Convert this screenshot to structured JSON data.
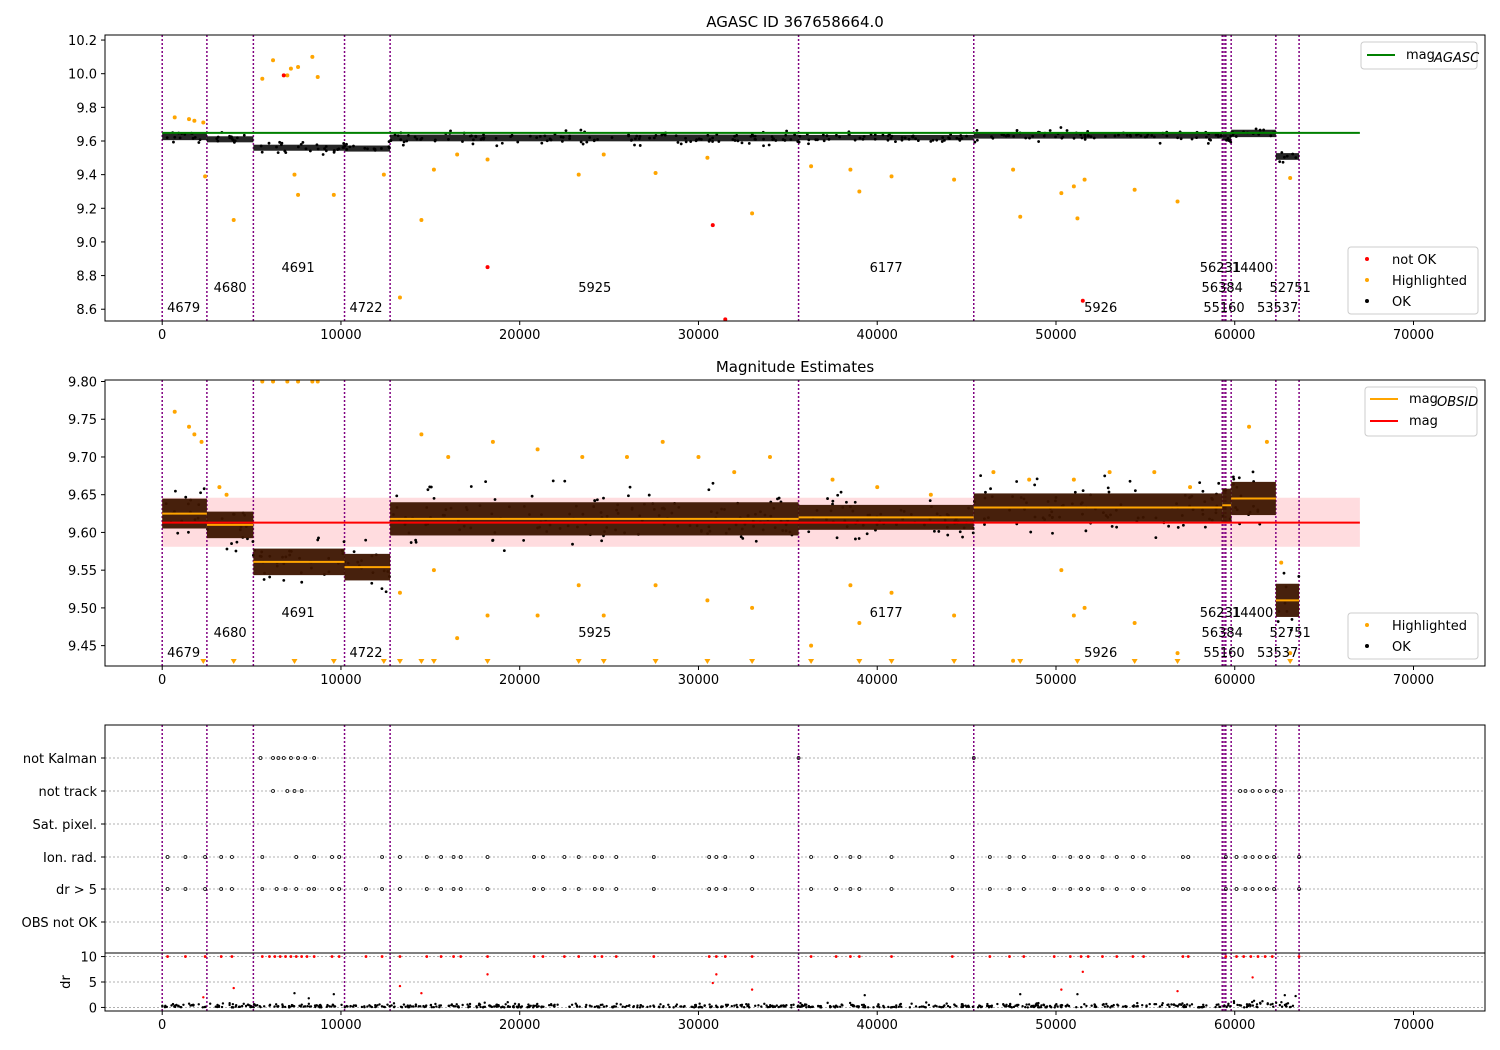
{
  "chart_data": [
    {
      "type": "scatter",
      "title": "AGASC ID 367658664.0",
      "xlabel": "",
      "ylabel": "",
      "xlim": [
        -3200,
        74000
      ],
      "ylim": [
        8.53,
        10.23
      ],
      "xticks": [
        "0",
        "10000",
        "20000",
        "30000",
        "40000",
        "50000",
        "60000",
        "70000"
      ],
      "yticks": [
        "8.6",
        "8.8",
        "9.0",
        "9.2",
        "9.4",
        "9.6",
        "9.8",
        "10.0",
        "10.2"
      ],
      "grid": false,
      "legend_upper": {
        "placement": "top-right",
        "entries": [
          {
            "label": "mag",
            "sub": "AGASC",
            "color": "#008000"
          }
        ]
      },
      "legend_lower": {
        "placement": "bottom-right",
        "entries": [
          {
            "label": "not OK",
            "color": "#ff0000"
          },
          {
            "label": "Highlighted",
            "color": "#ffa500"
          },
          {
            "label": "OK",
            "color": "#000000"
          }
        ]
      },
      "mag_agasc": 9.648,
      "mag_agasc_x": [
        0,
        67000
      ],
      "obsid_boundaries": [
        0,
        2500,
        5100,
        10200,
        12750,
        35600,
        45400,
        59300,
        59400,
        59500,
        59800,
        62300,
        63600
      ],
      "obsid_labels": [
        {
          "text": "4679",
          "x": 1200,
          "row": 0
        },
        {
          "text": "4680",
          "x": 3800,
          "row": 1
        },
        {
          "text": "4691",
          "x": 7600,
          "row": 2
        },
        {
          "text": "4722",
          "x": 11400,
          "row": 0
        },
        {
          "text": "5925",
          "x": 24200,
          "row": 1
        },
        {
          "text": "6177",
          "x": 40500,
          "row": 2
        },
        {
          "text": "5926",
          "x": 52500,
          "row": 0
        },
        {
          "text": "56231",
          "x": 59200,
          "row": 2
        },
        {
          "text": "14400",
          "x": 61000,
          "row": 2
        },
        {
          "text": "56384",
          "x": 59300,
          "row": 1
        },
        {
          "text": "55160",
          "x": 59400,
          "row": 0
        },
        {
          "text": "53537",
          "x": 62400,
          "row": 0
        },
        {
          "text": "52751",
          "x": 63100,
          "row": 1
        }
      ],
      "segments": [
        {
          "x0": 0,
          "x1": 2500,
          "mean": 9.625,
          "spread": 0.02
        },
        {
          "x0": 2500,
          "x1": 5100,
          "mean": 9.61,
          "spread": 0.018
        },
        {
          "x0": 5100,
          "x1": 10200,
          "mean": 9.56,
          "spread": 0.018
        },
        {
          "x0": 10200,
          "x1": 12750,
          "mean": 9.555,
          "spread": 0.018
        },
        {
          "x0": 12750,
          "x1": 35600,
          "mean": 9.618,
          "spread": 0.02
        },
        {
          "x0": 35600,
          "x1": 45400,
          "mean": 9.62,
          "spread": 0.016
        },
        {
          "x0": 45400,
          "x1": 59300,
          "mean": 9.632,
          "spread": 0.018
        },
        {
          "x0": 59300,
          "x1": 59800,
          "mean": 9.625,
          "spread": 0.02
        },
        {
          "x0": 59800,
          "x1": 62300,
          "mean": 9.645,
          "spread": 0.022
        },
        {
          "x0": 62300,
          "x1": 63600,
          "mean": 9.508,
          "spread": 0.02
        }
      ],
      "highlighted_points": [
        [
          700,
          9.74
        ],
        [
          1500,
          9.73
        ],
        [
          1800,
          9.72
        ],
        [
          2300,
          9.71
        ],
        [
          2400,
          9.39
        ],
        [
          4000,
          9.13
        ],
        [
          5600,
          9.97
        ],
        [
          6200,
          10.08
        ],
        [
          7000,
          9.99
        ],
        [
          7200,
          10.03
        ],
        [
          7600,
          10.04
        ],
        [
          8400,
          10.1
        ],
        [
          8700,
          9.98
        ],
        [
          7400,
          9.4
        ],
        [
          7600,
          9.28
        ],
        [
          9600,
          9.28
        ],
        [
          12400,
          9.4
        ],
        [
          13300,
          8.67
        ],
        [
          14500,
          9.13
        ],
        [
          15200,
          9.43
        ],
        [
          16500,
          9.52
        ],
        [
          18200,
          9.49
        ],
        [
          23300,
          9.4
        ],
        [
          24700,
          9.52
        ],
        [
          27600,
          9.41
        ],
        [
          30500,
          9.5
        ],
        [
          33000,
          9.17
        ],
        [
          36300,
          9.45
        ],
        [
          38500,
          9.43
        ],
        [
          39000,
          9.3
        ],
        [
          40800,
          9.39
        ],
        [
          44300,
          9.37
        ],
        [
          47600,
          9.43
        ],
        [
          48000,
          9.15
        ],
        [
          50300,
          9.29
        ],
        [
          51000,
          9.33
        ],
        [
          51200,
          9.14
        ],
        [
          51600,
          9.37
        ],
        [
          54400,
          9.31
        ],
        [
          56800,
          9.24
        ],
        [
          63100,
          9.38
        ]
      ],
      "not_ok_points": [
        [
          6800,
          9.99
        ],
        [
          18200,
          8.85
        ],
        [
          30800,
          9.1
        ],
        [
          31500,
          8.54
        ],
        [
          51500,
          8.65
        ]
      ]
    },
    {
      "type": "scatter",
      "title": "Magnitude Estimates",
      "xlabel": "",
      "ylabel": "",
      "xlim": [
        -3200,
        74000
      ],
      "ylim": [
        9.423,
        9.802
      ],
      "xticks": [
        "0",
        "10000",
        "20000",
        "30000",
        "40000",
        "50000",
        "60000",
        "70000"
      ],
      "yticks": [
        "9.45",
        "9.50",
        "9.55",
        "9.60",
        "9.65",
        "9.70",
        "9.75",
        "9.80"
      ],
      "grid": false,
      "legend_upper": {
        "placement": "top-right",
        "entries": [
          {
            "label": "mag",
            "sub": "OBSID",
            "color": "#ffa500"
          },
          {
            "label": "mag",
            "sub": "",
            "color": "#ff0000"
          }
        ]
      },
      "legend_lower": {
        "placement": "bottom-right",
        "entries": [
          {
            "label": "Highlighted",
            "color": "#ffa500"
          },
          {
            "label": "OK",
            "color": "#000000"
          }
        ]
      },
      "mag": 9.613,
      "mag_band": [
        9.581,
        9.646
      ],
      "mag_x": [
        0,
        67000
      ],
      "obsid_boundaries": [
        0,
        2500,
        5100,
        10200,
        12750,
        35600,
        45400,
        59300,
        59400,
        59500,
        59800,
        62300,
        63600
      ],
      "obsid_labels": [
        {
          "text": "4679",
          "x": 1200,
          "row": 0
        },
        {
          "text": "4680",
          "x": 3800,
          "row": 1
        },
        {
          "text": "4691",
          "x": 7600,
          "row": 2
        },
        {
          "text": "4722",
          "x": 11400,
          "row": 0
        },
        {
          "text": "5925",
          "x": 24200,
          "row": 1
        },
        {
          "text": "6177",
          "x": 40500,
          "row": 2
        },
        {
          "text": "5926",
          "x": 52500,
          "row": 0
        },
        {
          "text": "56231",
          "x": 59200,
          "row": 2
        },
        {
          "text": "14400",
          "x": 61000,
          "row": 2
        },
        {
          "text": "56384",
          "x": 59300,
          "row": 1
        },
        {
          "text": "55160",
          "x": 59400,
          "row": 0
        },
        {
          "text": "53537",
          "x": 62400,
          "row": 0
        },
        {
          "text": "52751",
          "x": 63100,
          "row": 1
        }
      ],
      "segments": [
        {
          "x0": 0,
          "x1": 2500,
          "mean": 9.625,
          "spread": 0.018
        },
        {
          "x0": 2500,
          "x1": 5100,
          "mean": 9.61,
          "spread": 0.016
        },
        {
          "x0": 5100,
          "x1": 10200,
          "mean": 9.561,
          "spread": 0.016
        },
        {
          "x0": 10200,
          "x1": 12750,
          "mean": 9.554,
          "spread": 0.016
        },
        {
          "x0": 12750,
          "x1": 35600,
          "mean": 9.618,
          "spread": 0.02
        },
        {
          "x0": 35600,
          "x1": 45400,
          "mean": 9.62,
          "spread": 0.015
        },
        {
          "x0": 45400,
          "x1": 59300,
          "mean": 9.633,
          "spread": 0.017
        },
        {
          "x0": 59300,
          "x1": 59800,
          "mean": 9.636,
          "spread": 0.02
        },
        {
          "x0": 59800,
          "x1": 62300,
          "mean": 9.645,
          "spread": 0.02
        },
        {
          "x0": 62300,
          "x1": 63600,
          "mean": 9.51,
          "spread": 0.02
        }
      ],
      "highlighted_points": [
        [
          700,
          9.76
        ],
        [
          1500,
          9.74
        ],
        [
          1800,
          9.73
        ],
        [
          2200,
          9.72
        ],
        [
          3200,
          9.66
        ],
        [
          3600,
          9.65
        ],
        [
          5600,
          9.8
        ],
        [
          6200,
          9.8
        ],
        [
          7000,
          9.8
        ],
        [
          7600,
          9.8
        ],
        [
          8400,
          9.8
        ],
        [
          8700,
          9.8
        ],
        [
          14500,
          9.73
        ],
        [
          16000,
          9.7
        ],
        [
          18500,
          9.72
        ],
        [
          21000,
          9.71
        ],
        [
          23500,
          9.7
        ],
        [
          26000,
          9.7
        ],
        [
          28000,
          9.72
        ],
        [
          30000,
          9.7
        ],
        [
          32000,
          9.68
        ],
        [
          34000,
          9.7
        ],
        [
          37500,
          9.67
        ],
        [
          40000,
          9.66
        ],
        [
          43000,
          9.65
        ],
        [
          46500,
          9.68
        ],
        [
          48500,
          9.67
        ],
        [
          51000,
          9.67
        ],
        [
          53000,
          9.68
        ],
        [
          55500,
          9.68
        ],
        [
          57500,
          9.66
        ],
        [
          60800,
          9.74
        ],
        [
          61800,
          9.72
        ],
        [
          62600,
          9.56
        ],
        [
          13300,
          9.52
        ],
        [
          15200,
          9.55
        ],
        [
          16500,
          9.46
        ],
        [
          18200,
          9.49
        ],
        [
          21000,
          9.49
        ],
        [
          23300,
          9.53
        ],
        [
          24700,
          9.49
        ],
        [
          27600,
          9.53
        ],
        [
          30500,
          9.51
        ],
        [
          33000,
          9.5
        ],
        [
          36300,
          9.45
        ],
        [
          38500,
          9.53
        ],
        [
          39000,
          9.48
        ],
        [
          40800,
          9.52
        ],
        [
          44300,
          9.49
        ],
        [
          47600,
          9.43
        ],
        [
          50300,
          9.55
        ],
        [
          51000,
          9.49
        ],
        [
          51600,
          9.5
        ],
        [
          54400,
          9.48
        ],
        [
          56800,
          9.44
        ],
        [
          63100,
          9.44
        ]
      ],
      "clipped_low": [
        2300,
        4000,
        7400,
        9600,
        12400,
        13300,
        14500,
        15200,
        18200,
        23300,
        24700,
        27600,
        30500,
        33000,
        36300,
        39000,
        40800,
        44300,
        48000,
        51200,
        54400,
        56800,
        63100
      ]
    },
    {
      "type": "scatter",
      "title": "",
      "xlabel": "",
      "ylabel": "",
      "xlim": [
        -3200,
        74000
      ],
      "xticks": [
        "0",
        "10000",
        "20000",
        "30000",
        "40000",
        "50000",
        "60000",
        "70000"
      ],
      "flag_rows": [
        "not Kalman",
        "not track",
        "Sat. pixel.",
        "Ion. rad.",
        "dr > 5",
        "OBS not OK"
      ],
      "grid": true,
      "obsid_boundaries": [
        0,
        2500,
        5100,
        10200,
        12750,
        35600,
        45400,
        59300,
        59400,
        59500,
        59800,
        62300,
        63600
      ],
      "flag_points": {
        "not Kalman": [
          5500,
          6200,
          6500,
          6800,
          7200,
          7600,
          8000,
          8500,
          35600,
          45400
        ],
        "not track": [
          6200,
          7000,
          7400,
          7800,
          60300,
          60600,
          61000,
          61400,
          61800,
          62200,
          62600
        ],
        "Sat. pixel.": [],
        "Ion. rad.": [
          300,
          1300,
          2400,
          3300,
          3900,
          5600,
          7500,
          8500,
          9500,
          9900,
          12300,
          13300,
          14800,
          15600,
          16300,
          16700,
          18200,
          20800,
          21300,
          22500,
          23300,
          24200,
          24600,
          25400,
          27500,
          30600,
          31000,
          31500,
          33000,
          36300,
          37700,
          38500,
          39000,
          40800,
          44200,
          46300,
          47400,
          48200,
          49900,
          50800,
          51400,
          51800,
          52600,
          53400,
          54300,
          54900,
          57100,
          57400,
          59500,
          60100,
          60600,
          61000,
          61400,
          61800,
          62200,
          63600
        ],
        "dr > 5": [
          300,
          1300,
          2400,
          3300,
          3900,
          5600,
          6400,
          6900,
          7500,
          8200,
          8500,
          9500,
          9900,
          11400,
          12300,
          13300,
          14800,
          15600,
          16300,
          16700,
          18200,
          20800,
          21300,
          22500,
          23300,
          24200,
          24600,
          25400,
          27500,
          30600,
          31000,
          31500,
          33000,
          36300,
          37700,
          38500,
          39000,
          40800,
          44200,
          46300,
          47400,
          48200,
          49900,
          50800,
          51400,
          51800,
          52600,
          53400,
          54300,
          54900,
          57100,
          57400,
          59500,
          60100,
          60600,
          61000,
          61400,
          61800,
          62200,
          63600
        ],
        "OBS not OK": []
      },
      "dr_panel": {
        "ylabel": "dr",
        "yticks": [
          "0",
          "5",
          "10"
        ],
        "ylim": [
          -0.7,
          10.7
        ],
        "red_at_ten": [
          300,
          1300,
          2400,
          3300,
          3900,
          5600,
          6000,
          6300,
          6600,
          6900,
          7200,
          7500,
          7800,
          8100,
          8500,
          9500,
          9900,
          11400,
          12300,
          13300,
          14800,
          15600,
          16300,
          16700,
          18200,
          20800,
          21300,
          22500,
          23300,
          24200,
          24600,
          25400,
          27500,
          30600,
          31000,
          31500,
          33000,
          36300,
          37700,
          38500,
          39000,
          40800,
          44200,
          46300,
          47400,
          48200,
          49900,
          50800,
          51400,
          51800,
          52600,
          53400,
          54300,
          54900,
          57100,
          57400,
          59500,
          60100,
          60500,
          60900,
          61300,
          61700,
          62100,
          63600
        ],
        "red_mid": [
          [
            18200,
            6.5
          ],
          [
            31000,
            6.5
          ],
          [
            51500,
            7.0
          ],
          [
            2300,
            2.0
          ],
          [
            4000,
            3.8
          ],
          [
            13300,
            4.2
          ],
          [
            14500,
            2.8
          ],
          [
            30800,
            4.8
          ],
          [
            33000,
            3.5
          ],
          [
            50300,
            3.5
          ],
          [
            56800,
            3.2
          ],
          [
            61000,
            5.9
          ]
        ],
        "black_mid": [
          [
            7400,
            2.8
          ],
          [
            8200,
            1.8
          ],
          [
            9600,
            2.6
          ],
          [
            39300,
            2.4
          ],
          [
            48000,
            2.6
          ],
          [
            51200,
            2.6
          ],
          [
            62800,
            2.4
          ]
        ]
      }
    }
  ],
  "colors": {
    "ok": "#000000",
    "highlighted": "#ffa500",
    "not_ok": "#ff0000",
    "agasc_line": "#008000",
    "obsid_mag": "#ffa500",
    "mag_line": "#ff0000",
    "band": "#ffcdd2",
    "boundary": "#800080",
    "segment_fill": "#3d1500"
  }
}
